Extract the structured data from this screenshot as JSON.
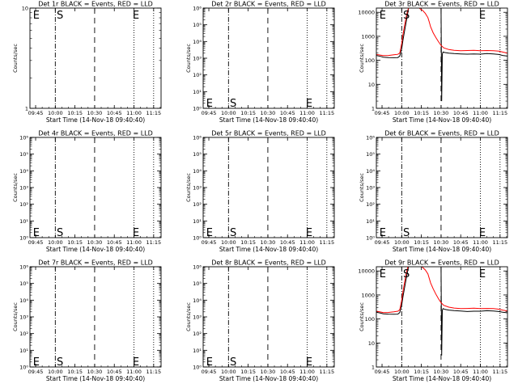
{
  "figure": {
    "layout": "3x3 grid",
    "colors": {
      "events": "#000000",
      "lld": "#ff0000",
      "axes": "#000000",
      "background": "#ffffff"
    }
  },
  "chart_data": [
    {
      "type": "line",
      "title": "Det 1r BLACK = Events, RED = LLD",
      "ylabel": "Counts/sec",
      "xlabel": "Start Time (14-Nov-18 09:40:40)",
      "x_ticks": [
        "09:45",
        "10:00",
        "10:15",
        "10:30",
        "10:45",
        "11:00",
        "11:15"
      ],
      "xlim": [
        "09:40:40",
        "11:20:40"
      ],
      "yscale": "log",
      "ylim": [
        1,
        10
      ],
      "y_ticks": [
        "1",
        "10"
      ],
      "vlines": [
        {
          "x": "10:00",
          "style": "dash-dot"
        },
        {
          "x": "10:30",
          "style": "dashed"
        },
        {
          "x": "11:00",
          "style": "dotted"
        },
        {
          "x": "11:15",
          "style": "dotted"
        }
      ],
      "markers": [
        {
          "text": "E",
          "x": "09:43",
          "pos": "top"
        },
        {
          "text": "S",
          "x": "10:01",
          "pos": "top"
        },
        {
          "text": "E",
          "x": "10:59",
          "pos": "top"
        }
      ],
      "series": []
    },
    {
      "type": "line",
      "title": "Det 2r BLACK = Events, RED = LLD",
      "ylabel": "Counts/sec",
      "xlabel": "Start Time (14-Nov-18 09:40:40)",
      "x_ticks": [
        "09:45",
        "10:00",
        "10:15",
        "10:30",
        "10:45",
        "11:00",
        "11:15"
      ],
      "xlim": [
        "09:40:40",
        "11:20:40"
      ],
      "yscale": "log",
      "ylim": [
        1,
        1000000
      ],
      "y_ticks": [
        "10⁰",
        "10¹",
        "10²",
        "10³",
        "10⁴",
        "10⁵",
        "10⁶"
      ],
      "vlines": [
        {
          "x": "10:00",
          "style": "dash-dot"
        },
        {
          "x": "10:30",
          "style": "dashed"
        },
        {
          "x": "11:00",
          "style": "dotted"
        },
        {
          "x": "11:15",
          "style": "dotted"
        }
      ],
      "markers": [
        {
          "text": "E",
          "x": "09:43",
          "pos": "bottom"
        },
        {
          "text": "S",
          "x": "10:01",
          "pos": "bottom"
        },
        {
          "text": "E",
          "x": "10:59",
          "pos": "bottom"
        }
      ],
      "series": []
    },
    {
      "type": "line",
      "title": "Det 3r BLACK = Events, RED = LLD",
      "ylabel": "Counts/sec",
      "xlabel": "Start Time (14-Nov-18 09:40:40)",
      "x_ticks": [
        "09:45",
        "10:00",
        "10:15",
        "10:30",
        "10:45",
        "11:00",
        "11:15"
      ],
      "xlim": [
        "09:40:40",
        "11:20:40"
      ],
      "yscale": "log",
      "ylim": [
        1,
        15000
      ],
      "y_ticks": [
        "1",
        "10",
        "100",
        "1000",
        "10000"
      ],
      "vlines": [
        {
          "x": "10:00",
          "style": "dash-dot"
        },
        {
          "x": "10:30",
          "style": "dashed"
        },
        {
          "x": "11:00",
          "style": "dotted"
        },
        {
          "x": "11:15",
          "style": "dotted"
        }
      ],
      "markers": [
        {
          "text": "E",
          "x": "09:43",
          "pos": "top"
        },
        {
          "text": "S",
          "x": "10:01",
          "pos": "top"
        },
        {
          "text": "E",
          "x": "10:59",
          "pos": "top"
        }
      ],
      "series": [
        {
          "color": "#000000",
          "x": [
            "09:40:40",
            "09:44:00",
            "09:46:00",
            "09:50:00",
            "09:54:00",
            "09:57:00",
            "09:58:30",
            "10:00:00",
            "10:01:00",
            "10:02:00",
            "10:03:00",
            "10:04:00",
            "10:05:00",
            "10:05:30",
            "10:06:00",
            "10:06:30",
            "10:08:00",
            "10:10:00",
            "10:12:00",
            "10:15:00",
            "10:18:00",
            "10:21:00",
            "10:24:00",
            "10:26:00",
            "10:28:00",
            "10:29:00",
            "10:30:00",
            "10:30:30",
            "10:31:00",
            "10:31:30",
            "10:33:00",
            "10:36:00",
            "10:40:00",
            "10:45:00",
            "10:50:00",
            "10:55:00",
            "11:00:00",
            "11:05:00",
            "11:10:00",
            "11:14:00",
            "11:17:00",
            "11:20:40"
          ],
          "y": [
            160,
            145,
            135,
            130,
            128,
            130,
            150,
            300,
            700,
            1500,
            3000,
            6000,
            12000,
            20000,
            20000,
            20000,
            20000,
            20000,
            20000,
            20000,
            20000,
            20000,
            20000,
            20000,
            20000,
            20000,
            20000,
            2,
            180,
            220,
            210,
            200,
            190,
            185,
            180,
            185,
            180,
            190,
            185,
            175,
            160,
            150
          ]
        },
        {
          "color": "#ff0000",
          "x": [
            "09:40:40",
            "09:44:00",
            "09:46:00",
            "09:50:00",
            "09:54:00",
            "09:57:00",
            "09:58:30",
            "10:00:00",
            "10:01:00",
            "10:02:00",
            "10:03:00",
            "10:04:00",
            "10:05:00",
            "10:06:00",
            "10:08:00",
            "10:10:00",
            "10:12:00",
            "10:14:00",
            "10:16:00",
            "10:18:00",
            "10:20:00",
            "10:21:00",
            "10:22:00",
            "10:24:00",
            "10:26:00",
            "10:28:00",
            "10:30:00",
            "10:32:00",
            "10:36:00",
            "10:40:00",
            "10:45:00",
            "10:50:00",
            "10:55:00",
            "11:00:00",
            "11:05:00",
            "11:10:00",
            "11:14:00",
            "11:17:00",
            "11:20:40"
          ],
          "y": [
            175,
            165,
            158,
            160,
            170,
            178,
            200,
            500,
            1200,
            2500,
            5000,
            9000,
            14000,
            20000,
            20000,
            20000,
            18000,
            14000,
            12000,
            9000,
            6000,
            4000,
            2500,
            1400,
            900,
            600,
            420,
            330,
            280,
            260,
            250,
            255,
            260,
            250,
            255,
            250,
            240,
            220,
            200
          ]
        }
      ]
    },
    {
      "type": "line",
      "title": "Det 4r BLACK = Events, RED = LLD",
      "ylabel": "Counts/sec",
      "xlabel": "Start Time (14-Nov-18 09:40:40)",
      "x_ticks": [
        "09:45",
        "10:00",
        "10:15",
        "10:30",
        "10:45",
        "11:00",
        "11:15"
      ],
      "xlim": [
        "09:40:40",
        "11:20:40"
      ],
      "yscale": "log",
      "ylim": [
        1,
        1000000
      ],
      "y_ticks": [
        "10⁰",
        "10¹",
        "10²",
        "10³",
        "10⁴",
        "10⁵",
        "10⁶"
      ],
      "vlines": [
        {
          "x": "10:00",
          "style": "dash-dot"
        },
        {
          "x": "10:30",
          "style": "dashed"
        },
        {
          "x": "11:00",
          "style": "dotted"
        },
        {
          "x": "11:15",
          "style": "dotted"
        }
      ],
      "markers": [
        {
          "text": "E",
          "x": "09:43",
          "pos": "bottom"
        },
        {
          "text": "S",
          "x": "10:01",
          "pos": "bottom"
        },
        {
          "text": "E",
          "x": "10:59",
          "pos": "bottom"
        }
      ],
      "series": []
    },
    {
      "type": "line",
      "title": "Det 5r BLACK = Events, RED = LLD",
      "ylabel": "Counts/sec",
      "xlabel": "Start Time (14-Nov-18 09:40:40)",
      "x_ticks": [
        "09:45",
        "10:00",
        "10:15",
        "10:30",
        "10:45",
        "11:00",
        "11:15"
      ],
      "xlim": [
        "09:40:40",
        "11:20:40"
      ],
      "yscale": "log",
      "ylim": [
        1,
        1000000
      ],
      "y_ticks": [
        "10⁰",
        "10¹",
        "10²",
        "10³",
        "10⁴",
        "10⁵",
        "10⁶"
      ],
      "vlines": [
        {
          "x": "10:00",
          "style": "dash-dot"
        },
        {
          "x": "10:30",
          "style": "dashed"
        },
        {
          "x": "11:00",
          "style": "dotted"
        },
        {
          "x": "11:15",
          "style": "dotted"
        }
      ],
      "markers": [
        {
          "text": "E",
          "x": "09:43",
          "pos": "bottom"
        },
        {
          "text": "S",
          "x": "10:01",
          "pos": "bottom"
        },
        {
          "text": "E",
          "x": "10:59",
          "pos": "bottom"
        }
      ],
      "series": []
    },
    {
      "type": "line",
      "title": "Det 6r BLACK = Events, RED = LLD",
      "ylabel": "Counts/sec",
      "xlabel": "Start Time (14-Nov-18 09:40:40)",
      "x_ticks": [
        "09:45",
        "10:00",
        "10:15",
        "10:30",
        "10:45",
        "11:00",
        "11:15"
      ],
      "xlim": [
        "09:40:40",
        "11:20:40"
      ],
      "yscale": "log",
      "ylim": [
        1,
        1000000
      ],
      "y_ticks": [
        "10⁰",
        "10¹",
        "10²",
        "10³",
        "10⁴",
        "10⁵",
        "10⁶"
      ],
      "vlines": [
        {
          "x": "10:00",
          "style": "dash-dot"
        },
        {
          "x": "10:30",
          "style": "dashed"
        },
        {
          "x": "11:00",
          "style": "dotted"
        },
        {
          "x": "11:15",
          "style": "dotted"
        }
      ],
      "markers": [
        {
          "text": "E",
          "x": "09:43",
          "pos": "bottom"
        },
        {
          "text": "S",
          "x": "10:01",
          "pos": "bottom"
        },
        {
          "text": "E",
          "x": "10:59",
          "pos": "bottom"
        }
      ],
      "series": []
    },
    {
      "type": "line",
      "title": "Det 7r BLACK = Events, RED = LLD",
      "ylabel": "Counts/sec",
      "xlabel": "Start Time (14-Nov-18 09:40:40)",
      "x_ticks": [
        "09:45",
        "10:00",
        "10:15",
        "10:30",
        "10:45",
        "11:00",
        "11:15"
      ],
      "xlim": [
        "09:40:40",
        "11:20:40"
      ],
      "yscale": "log",
      "ylim": [
        1,
        1000000
      ],
      "y_ticks": [
        "10⁰",
        "10¹",
        "10²",
        "10³",
        "10⁴",
        "10⁵",
        "10⁶"
      ],
      "vlines": [
        {
          "x": "10:00",
          "style": "dash-dot"
        },
        {
          "x": "10:30",
          "style": "dashed"
        },
        {
          "x": "11:00",
          "style": "dotted"
        },
        {
          "x": "11:15",
          "style": "dotted"
        }
      ],
      "markers": [
        {
          "text": "E",
          "x": "09:43",
          "pos": "bottom"
        },
        {
          "text": "S",
          "x": "10:01",
          "pos": "bottom"
        },
        {
          "text": "E",
          "x": "10:59",
          "pos": "bottom"
        }
      ],
      "series": []
    },
    {
      "type": "line",
      "title": "Det 8r BLACK = Events, RED = LLD",
      "ylabel": "Counts/sec",
      "xlabel": "Start Time (14-Nov-18 09:40:40)",
      "x_ticks": [
        "09:45",
        "10:00",
        "10:15",
        "10:30",
        "10:45",
        "11:00",
        "11:15"
      ],
      "xlim": [
        "09:40:40",
        "11:20:40"
      ],
      "yscale": "log",
      "ylim": [
        1,
        1000000
      ],
      "y_ticks": [
        "10⁰",
        "10¹",
        "10²",
        "10³",
        "10⁴",
        "10⁵",
        "10⁶"
      ],
      "vlines": [
        {
          "x": "10:00",
          "style": "dash-dot"
        },
        {
          "x": "10:30",
          "style": "dashed"
        },
        {
          "x": "11:00",
          "style": "dotted"
        },
        {
          "x": "11:15",
          "style": "dotted"
        }
      ],
      "markers": [
        {
          "text": "E",
          "x": "09:43",
          "pos": "bottom"
        },
        {
          "text": "S",
          "x": "10:01",
          "pos": "bottom"
        },
        {
          "text": "E",
          "x": "10:59",
          "pos": "bottom"
        }
      ],
      "series": []
    },
    {
      "type": "line",
      "title": "Det 9r BLACK = Events, RED = LLD",
      "ylabel": "Counts/sec",
      "xlabel": "Start Time (14-Nov-18 09:40:40)",
      "x_ticks": [
        "09:45",
        "10:00",
        "10:15",
        "10:30",
        "10:45",
        "11:00",
        "11:15"
      ],
      "xlim": [
        "09:40:40",
        "11:20:40"
      ],
      "yscale": "log",
      "ylim": [
        1,
        15000
      ],
      "y_ticks": [
        "1",
        "10",
        "100",
        "1000",
        "10000"
      ],
      "vlines": [
        {
          "x": "10:00",
          "style": "dash-dot"
        },
        {
          "x": "10:30",
          "style": "dashed"
        },
        {
          "x": "11:00",
          "style": "dotted"
        },
        {
          "x": "11:15",
          "style": "dotted"
        }
      ],
      "markers": [
        {
          "text": "E",
          "x": "09:43",
          "pos": "top"
        },
        {
          "text": "S",
          "x": "10:01",
          "pos": "top"
        },
        {
          "text": "E",
          "x": "10:59",
          "pos": "top"
        }
      ],
      "series": [
        {
          "color": "#000000",
          "x": [
            "09:40:40",
            "09:44:00",
            "09:46:00",
            "09:50:00",
            "09:54:00",
            "09:57:00",
            "09:58:30",
            "10:00:00",
            "10:01:00",
            "10:02:00",
            "10:03:00",
            "10:04:00",
            "10:05:00",
            "10:05:30",
            "10:06:00",
            "10:06:30",
            "10:08:00",
            "10:10:00",
            "10:12:00",
            "10:15:00",
            "10:18:00",
            "10:21:00",
            "10:24:00",
            "10:26:00",
            "10:28:00",
            "10:29:00",
            "10:30:00",
            "10:30:30",
            "10:31:00",
            "10:31:30",
            "10:33:00",
            "10:36:00",
            "10:40:00",
            "10:45:00",
            "10:50:00",
            "10:55:00",
            "11:00:00",
            "11:05:00",
            "11:10:00",
            "11:14:00",
            "11:17:00",
            "11:20:40"
          ],
          "y": [
            190,
            175,
            165,
            160,
            158,
            160,
            185,
            380,
            850,
            1800,
            3600,
            7000,
            13000,
            20000,
            20000,
            20000,
            20000,
            20000,
            20000,
            20000,
            20000,
            20000,
            20000,
            20000,
            20000,
            20000,
            20000,
            3,
            230,
            270,
            250,
            235,
            225,
            215,
            205,
            210,
            210,
            220,
            215,
            205,
            190,
            180
          ]
        },
        {
          "color": "#ff0000",
          "x": [
            "09:40:40",
            "09:44:00",
            "09:46:00",
            "09:50:00",
            "09:54:00",
            "09:57:00",
            "09:58:30",
            "10:00:00",
            "10:01:00",
            "10:02:00",
            "10:03:00",
            "10:04:00",
            "10:05:00",
            "10:06:00",
            "10:08:00",
            "10:10:00",
            "10:12:00",
            "10:14:00",
            "10:16:00",
            "10:18:00",
            "10:20:00",
            "10:21:00",
            "10:22:00",
            "10:24:00",
            "10:26:00",
            "10:28:00",
            "10:30:00",
            "10:32:00",
            "10:36:00",
            "10:40:00",
            "10:45:00",
            "10:50:00",
            "10:55:00",
            "11:00:00",
            "11:05:00",
            "11:10:00",
            "11:14:00",
            "11:17:00",
            "11:20:40"
          ],
          "y": [
            210,
            195,
            185,
            188,
            198,
            210,
            240,
            600,
            1400,
            3000,
            6000,
            11000,
            16000,
            20000,
            20000,
            20000,
            20000,
            17000,
            14000,
            11000,
            7500,
            5000,
            3200,
            1800,
            1100,
            700,
            480,
            370,
            310,
            285,
            270,
            275,
            280,
            270,
            275,
            270,
            255,
            235,
            215
          ]
        }
      ]
    }
  ]
}
